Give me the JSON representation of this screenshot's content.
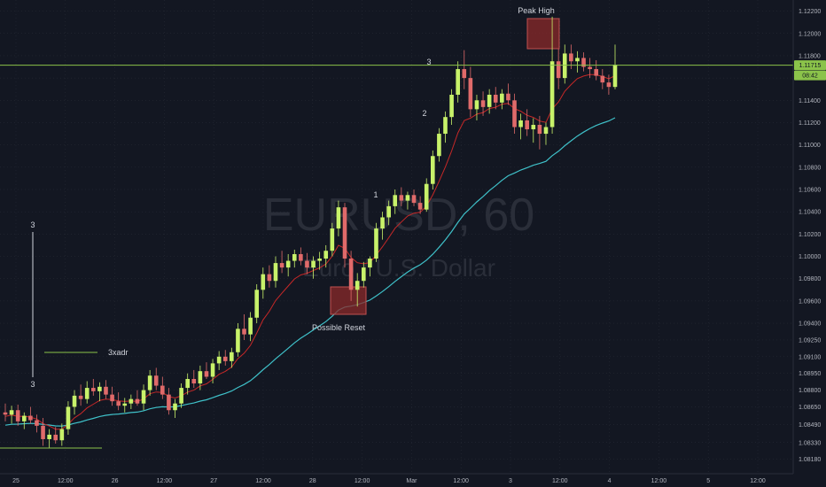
{
  "chart_data": {
    "type": "candlestick",
    "symbol": "EURUSD",
    "interval": "60",
    "watermark": {
      "symbol": "EURUSD, 60",
      "description": "Euro / U.S. Dollar"
    },
    "colors": {
      "background": "#131722",
      "up_candle": "#c8f26a",
      "down_candle": "#e06a6a",
      "ema_fast": "#c62828",
      "ema_slow": "#3fc1c9",
      "level_line": "#8bc34a",
      "box_fill": "#8b2a2a",
      "grid": "#2a2e39"
    },
    "ylim": [
      1.0805,
      1.123
    ],
    "y_ticks": [
      "1.12200",
      "1.12000",
      "1.11800",
      "1.11600",
      "1.11400",
      "1.11200",
      "1.11000",
      "1.10800",
      "1.10600",
      "1.10400",
      "1.10200",
      "1.10000",
      "1.09800",
      "1.09600",
      "1.09400",
      "1.09250",
      "1.09100",
      "1.08950",
      "1.08800",
      "1.08650",
      "1.08490",
      "1.08330",
      "1.08180"
    ],
    "x_ticks": [
      "25",
      "12:00",
      "26",
      "12:00",
      "27",
      "12:00",
      "28",
      "12:00",
      "Mar",
      "12:00",
      "3",
      "12:00",
      "4",
      "12:00",
      "5",
      "12:00"
    ],
    "price_label": "1.11715",
    "time_label": "08:42",
    "current_price": 1.11715,
    "annotations": {
      "peak_high": "Peak High",
      "possible_reset": "Possible Reset",
      "adr": "3xadr",
      "wave_1": "1",
      "wave_2": "2",
      "wave_3": "3",
      "range_top": "3",
      "range_bottom": "3"
    },
    "ohlc": [
      {
        "o": 1.086,
        "h": 1.0868,
        "l": 1.0852,
        "c": 1.0858
      },
      {
        "o": 1.0858,
        "h": 1.0866,
        "l": 1.085,
        "c": 1.0862
      },
      {
        "o": 1.0862,
        "h": 1.0867,
        "l": 1.0848,
        "c": 1.0852
      },
      {
        "o": 1.0852,
        "h": 1.086,
        "l": 1.0845,
        "c": 1.0857
      },
      {
        "o": 1.0857,
        "h": 1.0865,
        "l": 1.085,
        "c": 1.0853
      },
      {
        "o": 1.0853,
        "h": 1.0858,
        "l": 1.0842,
        "c": 1.0848
      },
      {
        "o": 1.0848,
        "h": 1.0855,
        "l": 1.083,
        "c": 1.0836
      },
      {
        "o": 1.0836,
        "h": 1.0845,
        "l": 1.0828,
        "c": 1.084
      },
      {
        "o": 1.084,
        "h": 1.0847,
        "l": 1.0832,
        "c": 1.0835
      },
      {
        "o": 1.0835,
        "h": 1.085,
        "l": 1.083,
        "c": 1.0845
      },
      {
        "o": 1.0845,
        "h": 1.087,
        "l": 1.084,
        "c": 1.0865
      },
      {
        "o": 1.0865,
        "h": 1.088,
        "l": 1.0858,
        "c": 1.0875
      },
      {
        "o": 1.0875,
        "h": 1.0885,
        "l": 1.0866,
        "c": 1.0872
      },
      {
        "o": 1.0872,
        "h": 1.0888,
        "l": 1.0868,
        "c": 1.0882
      },
      {
        "o": 1.0882,
        "h": 1.089,
        "l": 1.0875,
        "c": 1.0879
      },
      {
        "o": 1.0879,
        "h": 1.0887,
        "l": 1.087,
        "c": 1.0883
      },
      {
        "o": 1.0883,
        "h": 1.0889,
        "l": 1.0872,
        "c": 1.0876
      },
      {
        "o": 1.0876,
        "h": 1.0883,
        "l": 1.0866,
        "c": 1.087
      },
      {
        "o": 1.087,
        "h": 1.0878,
        "l": 1.0862,
        "c": 1.0866
      },
      {
        "o": 1.0866,
        "h": 1.0873,
        "l": 1.086,
        "c": 1.0868
      },
      {
        "o": 1.0868,
        "h": 1.0876,
        "l": 1.0863,
        "c": 1.0872
      },
      {
        "o": 1.0872,
        "h": 1.088,
        "l": 1.0866,
        "c": 1.0868
      },
      {
        "o": 1.0868,
        "h": 1.0885,
        "l": 1.0862,
        "c": 1.088
      },
      {
        "o": 1.088,
        "h": 1.0898,
        "l": 1.0875,
        "c": 1.0893
      },
      {
        "o": 1.0893,
        "h": 1.09,
        "l": 1.088,
        "c": 1.0884
      },
      {
        "o": 1.0884,
        "h": 1.0892,
        "l": 1.0872,
        "c": 1.0876
      },
      {
        "o": 1.0876,
        "h": 1.0882,
        "l": 1.0858,
        "c": 1.0862
      },
      {
        "o": 1.0862,
        "h": 1.0872,
        "l": 1.0855,
        "c": 1.0868
      },
      {
        "o": 1.0868,
        "h": 1.0886,
        "l": 1.0864,
        "c": 1.0882
      },
      {
        "o": 1.0882,
        "h": 1.0895,
        "l": 1.0876,
        "c": 1.089
      },
      {
        "o": 1.089,
        "h": 1.0898,
        "l": 1.0882,
        "c": 1.0886
      },
      {
        "o": 1.0886,
        "h": 1.0902,
        "l": 1.088,
        "c": 1.0897
      },
      {
        "o": 1.0897,
        "h": 1.0905,
        "l": 1.089,
        "c": 1.0892
      },
      {
        "o": 1.0892,
        "h": 1.0908,
        "l": 1.0886,
        "c": 1.0904
      },
      {
        "o": 1.0904,
        "h": 1.0915,
        "l": 1.0898,
        "c": 1.091
      },
      {
        "o": 1.091,
        "h": 1.0916,
        "l": 1.0902,
        "c": 1.0906
      },
      {
        "o": 1.0906,
        "h": 1.0918,
        "l": 1.09,
        "c": 1.0914
      },
      {
        "o": 1.0914,
        "h": 1.094,
        "l": 1.091,
        "c": 1.0935
      },
      {
        "o": 1.0935,
        "h": 1.0948,
        "l": 1.0925,
        "c": 1.093
      },
      {
        "o": 1.093,
        "h": 1.095,
        "l": 1.0924,
        "c": 1.0945
      },
      {
        "o": 1.0945,
        "h": 1.0975,
        "l": 1.094,
        "c": 1.097
      },
      {
        "o": 1.097,
        "h": 1.099,
        "l": 1.0962,
        "c": 1.0984
      },
      {
        "o": 1.0984,
        "h": 1.0992,
        "l": 1.0972,
        "c": 1.0978
      },
      {
        "o": 1.0978,
        "h": 1.1,
        "l": 1.0972,
        "c": 1.0994
      },
      {
        "o": 1.0994,
        "h": 1.1005,
        "l": 1.0985,
        "c": 1.099
      },
      {
        "o": 1.099,
        "h": 1.1002,
        "l": 1.0982,
        "c": 1.0996
      },
      {
        "o": 1.0996,
        "h": 1.1006,
        "l": 1.099,
        "c": 1.1002
      },
      {
        "o": 1.1002,
        "h": 1.1008,
        "l": 1.0992,
        "c": 1.0996
      },
      {
        "o": 1.0996,
        "h": 1.1003,
        "l": 1.0984,
        "c": 1.099
      },
      {
        "o": 1.099,
        "h": 1.1,
        "l": 1.098,
        "c": 1.0996
      },
      {
        "o": 1.0996,
        "h": 1.1004,
        "l": 1.0988,
        "c": 1.0998
      },
      {
        "o": 1.0998,
        "h": 1.101,
        "l": 1.099,
        "c": 1.1005
      },
      {
        "o": 1.1005,
        "h": 1.103,
        "l": 1.1,
        "c": 1.1025
      },
      {
        "o": 1.1025,
        "h": 1.105,
        "l": 1.1018,
        "c": 1.1044
      },
      {
        "o": 1.1044,
        "h": 1.1048,
        "l": 1.099,
        "c": 1.0998
      },
      {
        "o": 1.0998,
        "h": 1.1005,
        "l": 1.096,
        "c": 1.097
      },
      {
        "o": 1.097,
        "h": 1.0985,
        "l": 1.0955,
        "c": 1.0978
      },
      {
        "o": 1.0978,
        "h": 1.0995,
        "l": 1.0972,
        "c": 1.099
      },
      {
        "o": 1.099,
        "h": 1.1,
        "l": 1.0982,
        "c": 1.0998
      },
      {
        "o": 1.0998,
        "h": 1.103,
        "l": 1.0995,
        "c": 1.1025
      },
      {
        "o": 1.1025,
        "h": 1.104,
        "l": 1.1015,
        "c": 1.1035
      },
      {
        "o": 1.1035,
        "h": 1.105,
        "l": 1.1028,
        "c": 1.1045
      },
      {
        "o": 1.1045,
        "h": 1.106,
        "l": 1.1038,
        "c": 1.1055
      },
      {
        "o": 1.1055,
        "h": 1.1062,
        "l": 1.1045,
        "c": 1.105
      },
      {
        "o": 1.105,
        "h": 1.1058,
        "l": 1.1042,
        "c": 1.1055
      },
      {
        "o": 1.1055,
        "h": 1.106,
        "l": 1.1045,
        "c": 1.1048
      },
      {
        "o": 1.1048,
        "h": 1.1054,
        "l": 1.1038,
        "c": 1.1042
      },
      {
        "o": 1.1042,
        "h": 1.107,
        "l": 1.104,
        "c": 1.1065
      },
      {
        "o": 1.1065,
        "h": 1.1095,
        "l": 1.106,
        "c": 1.109
      },
      {
        "o": 1.109,
        "h": 1.1115,
        "l": 1.1085,
        "c": 1.111
      },
      {
        "o": 1.111,
        "h": 1.113,
        "l": 1.1102,
        "c": 1.1125
      },
      {
        "o": 1.1125,
        "h": 1.115,
        "l": 1.1118,
        "c": 1.1145
      },
      {
        "o": 1.1145,
        "h": 1.1175,
        "l": 1.1138,
        "c": 1.1168
      },
      {
        "o": 1.1168,
        "h": 1.1185,
        "l": 1.115,
        "c": 1.116
      },
      {
        "o": 1.116,
        "h": 1.117,
        "l": 1.1125,
        "c": 1.1132
      },
      {
        "o": 1.1132,
        "h": 1.1145,
        "l": 1.1122,
        "c": 1.114
      },
      {
        "o": 1.114,
        "h": 1.1148,
        "l": 1.1126,
        "c": 1.1134
      },
      {
        "o": 1.1134,
        "h": 1.115,
        "l": 1.1128,
        "c": 1.1145
      },
      {
        "o": 1.1145,
        "h": 1.1152,
        "l": 1.1132,
        "c": 1.1138
      },
      {
        "o": 1.1138,
        "h": 1.115,
        "l": 1.1132,
        "c": 1.1146
      },
      {
        "o": 1.1146,
        "h": 1.1155,
        "l": 1.1136,
        "c": 1.114
      },
      {
        "o": 1.114,
        "h": 1.1146,
        "l": 1.111,
        "c": 1.1116
      },
      {
        "o": 1.1116,
        "h": 1.1128,
        "l": 1.1105,
        "c": 1.1122
      },
      {
        "o": 1.1122,
        "h": 1.1132,
        "l": 1.1108,
        "c": 1.1114
      },
      {
        "o": 1.1114,
        "h": 1.1124,
        "l": 1.1102,
        "c": 1.1118
      },
      {
        "o": 1.1118,
        "h": 1.1126,
        "l": 1.1096,
        "c": 1.111
      },
      {
        "o": 1.111,
        "h": 1.112,
        "l": 1.11,
        "c": 1.1116
      },
      {
        "o": 1.1116,
        "h": 1.1215,
        "l": 1.111,
        "c": 1.1175
      },
      {
        "o": 1.1175,
        "h": 1.1186,
        "l": 1.115,
        "c": 1.116
      },
      {
        "o": 1.116,
        "h": 1.119,
        "l": 1.1155,
        "c": 1.1182
      },
      {
        "o": 1.1182,
        "h": 1.119,
        "l": 1.1168,
        "c": 1.1175
      },
      {
        "o": 1.1175,
        "h": 1.1184,
        "l": 1.1165,
        "c": 1.1178
      },
      {
        "o": 1.1178,
        "h": 1.1183,
        "l": 1.1166,
        "c": 1.117
      },
      {
        "o": 1.117,
        "h": 1.1178,
        "l": 1.116,
        "c": 1.1168
      },
      {
        "o": 1.1168,
        "h": 1.1176,
        "l": 1.1158,
        "c": 1.1162
      },
      {
        "o": 1.1162,
        "h": 1.1168,
        "l": 1.115,
        "c": 1.1156
      },
      {
        "o": 1.1156,
        "h": 1.1163,
        "l": 1.1145,
        "c": 1.1152
      },
      {
        "o": 1.1152,
        "h": 1.119,
        "l": 1.115,
        "c": 1.1172
      }
    ]
  }
}
